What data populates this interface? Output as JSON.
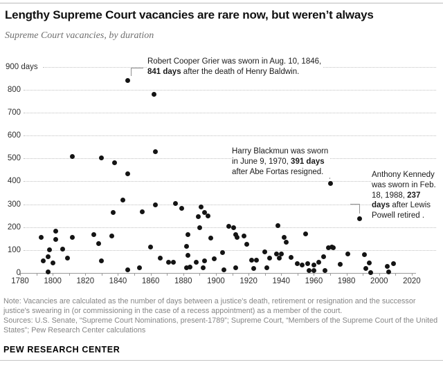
{
  "header": {
    "title": "Lengthy Supreme Court vacancies are rare now, but weren’t always",
    "subtitle": "Supreme Court vacancies, by duration"
  },
  "footer": {
    "note": "Note: Vacancies are calculated as the number of days between a justice's death, retirement or resignation and the successor justice's swearing in (or commissioning in the case of a recess appointment) as a member of the court.",
    "sources": "Sources: U.S. Senate, “Supreme Court Nominations, present-1789”; Supreme Court, “Members of the Supreme Court of the United States”; Pew Research Center calculations",
    "brand": "PEW RESEARCH CENTER"
  },
  "colors": {
    "dot": "#141414",
    "gridline": "#bfbfbf",
    "axis": "#9a9a9a",
    "annotation_connector": "#8f8f8f",
    "text_dark": "#111111",
    "text_gray": "#858585"
  },
  "chart_data": {
    "type": "scatter",
    "title": "Lengthy Supreme Court vacancies are rare now, but weren’t always",
    "subtitle": "Supreme Court vacancies, by duration",
    "xlabel": "",
    "ylabel": "days",
    "x_range": [
      1780,
      2020
    ],
    "x_label_step": 20,
    "x_tick_step": 10,
    "y_range": [
      0,
      900
    ],
    "y_tick_step": 100,
    "y_top_label": "900 days",
    "grid": "dotted-horizontal",
    "points": [
      [
        1793,
        156
      ],
      [
        1794,
        54
      ],
      [
        1797,
        72
      ],
      [
        1797,
        6
      ],
      [
        1798,
        102
      ],
      [
        1800,
        45
      ],
      [
        1802,
        183
      ],
      [
        1802,
        147
      ],
      [
        1806,
        105
      ],
      [
        1809,
        66
      ],
      [
        1812,
        507
      ],
      [
        1812,
        156
      ],
      [
        1825,
        168
      ],
      [
        1828,
        129
      ],
      [
        1830,
        501
      ],
      [
        1830,
        54
      ],
      [
        1836,
        162
      ],
      [
        1837,
        264
      ],
      [
        1838,
        480
      ],
      [
        1843,
        318
      ],
      [
        1846,
        432
      ],
      [
        1846,
        15
      ],
      [
        1846,
        841
      ],
      [
        1853,
        24
      ],
      [
        1855,
        267
      ],
      [
        1860,
        114
      ],
      [
        1862,
        780
      ],
      [
        1863,
        528
      ],
      [
        1863,
        297
      ],
      [
        1866,
        66
      ],
      [
        1871,
        48
      ],
      [
        1874,
        48
      ],
      [
        1875,
        303
      ],
      [
        1879,
        282
      ],
      [
        1882,
        117
      ],
      [
        1882,
        24
      ],
      [
        1883,
        168
      ],
      [
        1883,
        78
      ],
      [
        1884,
        27
      ],
      [
        1888,
        48
      ],
      [
        1889,
        246
      ],
      [
        1890,
        198
      ],
      [
        1891,
        288
      ],
      [
        1892,
        24
      ],
      [
        1893,
        54
      ],
      [
        1893,
        264
      ],
      [
        1895,
        249
      ],
      [
        1897,
        153
      ],
      [
        1899,
        63
      ],
      [
        1904,
        90
      ],
      [
        1905,
        15
      ],
      [
        1908,
        204
      ],
      [
        1911,
        198
      ],
      [
        1912,
        168
      ],
      [
        1913,
        156
      ],
      [
        1912,
        24
      ],
      [
        1917,
        162
      ],
      [
        1919,
        126
      ],
      [
        1922,
        57
      ],
      [
        1925,
        57
      ],
      [
        1923,
        21
      ],
      [
        1930,
        93
      ],
      [
        1931,
        24
      ],
      [
        1933,
        66
      ],
      [
        1937,
        84
      ],
      [
        1940,
        84
      ],
      [
        1939,
        66
      ],
      [
        1938,
        207
      ],
      [
        1942,
        156
      ],
      [
        1943,
        135
      ],
      [
        1946,
        69
      ],
      [
        1950,
        42
      ],
      [
        1953,
        36
      ],
      [
        1955,
        171
      ],
      [
        1956,
        42
      ],
      [
        1957,
        12
      ],
      [
        1960,
        36
      ],
      [
        1960,
        12
      ],
      [
        1963,
        48
      ],
      [
        1966,
        72
      ],
      [
        1967,
        12
      ],
      [
        1969,
        111
      ],
      [
        1971,
        114
      ],
      [
        1972,
        111
      ],
      [
        1970,
        391
      ],
      [
        1976,
        39
      ],
      [
        1981,
        84
      ],
      [
        1988,
        237
      ],
      [
        1991,
        81
      ],
      [
        1992,
        21
      ],
      [
        1994,
        45
      ],
      [
        1995,
        3
      ],
      [
        2005,
        30
      ],
      [
        2006,
        6
      ],
      [
        2009,
        42
      ]
    ],
    "annotations": [
      {
        "id": "grier",
        "target": {
          "year": 1846,
          "days": 841
        },
        "lines": [
          "Robert Cooper Grier was sworn in Aug. 10, 1846,",
          "**841 days** after the death of Henry Baldwin."
        ]
      },
      {
        "id": "blackmun",
        "target": {
          "year": 1970,
          "days": 391
        },
        "lines": [
          "Harry Blackmun was sworn",
          "in June 9, 1970, **391 days**",
          "after Abe Fortas resigned."
        ]
      },
      {
        "id": "kennedy",
        "target": {
          "year": 1988,
          "days": 237
        },
        "lines": [
          "Anthony Kennedy",
          "was sworn in Feb.",
          "18, 1988, **237**",
          "**days** after Lewis",
          "Powell retired ."
        ]
      }
    ]
  }
}
